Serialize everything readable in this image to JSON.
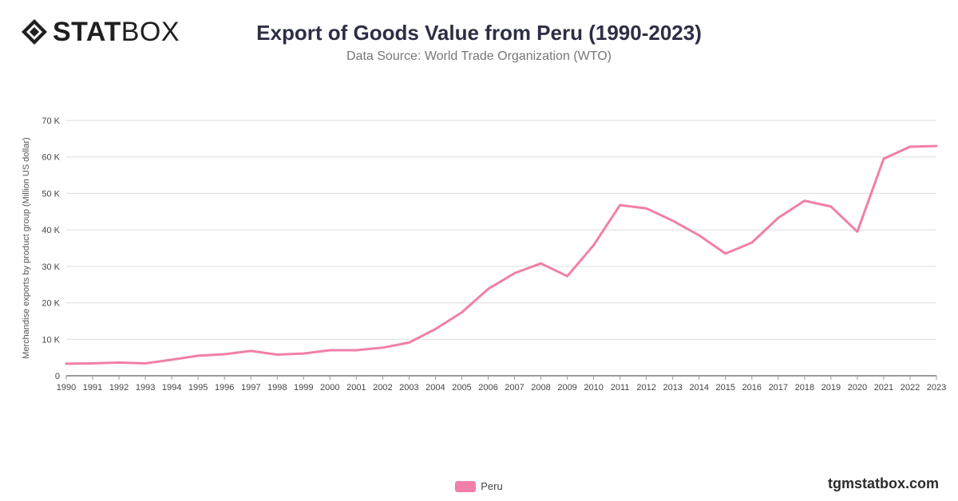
{
  "logo": {
    "text_bold": "STAT",
    "text_light": "BOX"
  },
  "header": {
    "title": "Export of Goods Value from Peru (1990-2023)",
    "subtitle": "Data Source: World Trade Organization (WTO)"
  },
  "watermark": "tgmstatbox.com",
  "colors": {
    "series": "#f17fa9",
    "grid": "#dddddd",
    "axis": "#333333"
  },
  "chart_data": {
    "type": "line",
    "ylabel": "Merchandise exports by product group (Million US dollar)",
    "xlabel": "",
    "ylim": [
      0,
      70000
    ],
    "y_ticks": [
      0,
      10000,
      20000,
      30000,
      40000,
      50000,
      60000,
      70000
    ],
    "y_tick_labels": [
      "0",
      "10 K",
      "20 K",
      "30 K",
      "40 K",
      "50 K",
      "60 K",
      "70 K"
    ],
    "grid": true,
    "legend": "bottom-center",
    "x": [
      "1990",
      "1991",
      "1992",
      "1993",
      "1994",
      "1995",
      "1996",
      "1997",
      "1998",
      "1999",
      "2000",
      "2001",
      "2002",
      "2003",
      "2004",
      "2005",
      "2006",
      "2007",
      "2008",
      "2009",
      "2010",
      "2011",
      "2012",
      "2013",
      "2014",
      "2015",
      "2016",
      "2017",
      "2018",
      "2019",
      "2020",
      "2021",
      "2022",
      "2023"
    ],
    "series": [
      {
        "name": "Peru",
        "color": "#f17fa9",
        "values": [
          3300,
          3400,
          3600,
          3400,
          4400,
          5500,
          5900,
          6800,
          5800,
          6100,
          7000,
          7000,
          7700,
          9100,
          12800,
          17400,
          23800,
          28100,
          30800,
          27300,
          35800,
          46800,
          45900,
          42500,
          38500,
          33500,
          36500,
          43300,
          48000,
          46400,
          39500,
          59500,
          62800,
          63000
        ]
      }
    ]
  }
}
